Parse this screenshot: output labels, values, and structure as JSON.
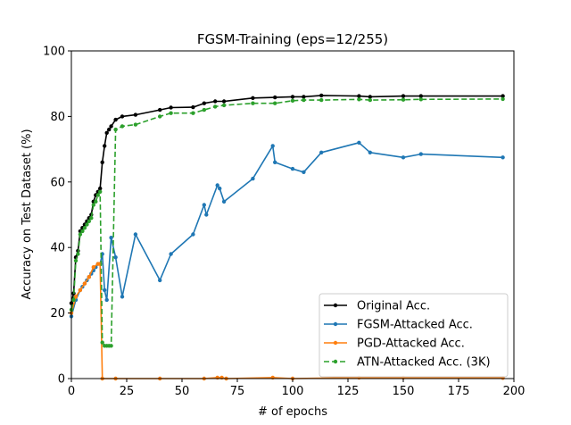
{
  "chart_data": {
    "type": "line",
    "title": "FGSM-Training (eps=12/255)",
    "xlabel": "# of epochs",
    "ylabel": "Accuracy on Test Dataset (%)",
    "xlim": [
      0,
      200
    ],
    "ylim": [
      0,
      100
    ],
    "xticks": [
      0,
      25,
      50,
      75,
      100,
      125,
      150,
      175,
      200
    ],
    "yticks": [
      0,
      20,
      40,
      60,
      80,
      100
    ],
    "grid": false,
    "legend_position": "lower-right",
    "series": [
      {
        "name": "Original Acc.",
        "color": "#000000",
        "style": "solid",
        "points": [
          [
            0,
            23
          ],
          [
            1,
            26
          ],
          [
            2,
            37
          ],
          [
            3,
            39
          ],
          [
            4,
            45
          ],
          [
            5,
            46
          ],
          [
            6,
            47
          ],
          [
            7,
            48
          ],
          [
            8,
            49
          ],
          [
            9,
            50
          ],
          [
            10,
            54
          ],
          [
            11,
            56
          ],
          [
            12,
            57
          ],
          [
            13,
            58
          ],
          [
            14,
            66
          ],
          [
            15,
            71
          ],
          [
            16,
            75
          ],
          [
            17,
            76
          ],
          [
            18,
            77
          ],
          [
            20,
            79
          ],
          [
            23,
            80
          ],
          [
            29,
            80.5
          ],
          [
            40,
            82
          ],
          [
            45,
            82.7
          ],
          [
            55,
            82.8
          ],
          [
            60,
            84
          ],
          [
            65,
            84.6
          ],
          [
            69,
            84.6
          ],
          [
            82,
            85.6
          ],
          [
            92,
            85.8
          ],
          [
            100,
            86
          ],
          [
            105,
            86
          ],
          [
            113,
            86.4
          ],
          [
            130,
            86.2
          ],
          [
            135,
            86
          ],
          [
            150,
            86.2
          ],
          [
            158,
            86.2
          ],
          [
            195,
            86.2
          ]
        ]
      },
      {
        "name": "FGSM-Attacked Acc.",
        "color": "#1f77b4",
        "style": "solid",
        "points": [
          [
            0,
            19
          ],
          [
            2,
            24
          ],
          [
            4,
            27
          ],
          [
            5,
            28
          ],
          [
            6,
            29
          ],
          [
            7,
            30
          ],
          [
            8,
            31
          ],
          [
            9,
            32
          ],
          [
            10,
            33
          ],
          [
            11,
            34
          ],
          [
            12,
            35
          ],
          [
            13,
            35
          ],
          [
            14,
            38
          ],
          [
            15,
            27
          ],
          [
            16,
            24
          ],
          [
            18,
            43
          ],
          [
            20,
            37
          ],
          [
            23,
            25
          ],
          [
            29,
            44
          ],
          [
            40,
            30
          ],
          [
            45,
            38
          ],
          [
            55,
            44
          ],
          [
            60,
            53
          ],
          [
            61,
            50
          ],
          [
            66,
            59
          ],
          [
            67,
            58
          ],
          [
            69,
            54
          ],
          [
            82,
            61
          ],
          [
            91,
            71
          ],
          [
            92,
            66
          ],
          [
            100,
            64
          ],
          [
            105,
            63
          ],
          [
            113,
            69
          ],
          [
            130,
            72
          ],
          [
            135,
            69
          ],
          [
            150,
            67.5
          ],
          [
            158,
            68.5
          ],
          [
            195,
            67.5
          ]
        ]
      },
      {
        "name": "PGD-Attacked Acc.",
        "color": "#ff7f0e",
        "style": "solid",
        "points": [
          [
            0,
            20
          ],
          [
            2,
            25
          ],
          [
            4,
            27
          ],
          [
            6,
            29
          ],
          [
            8,
            31
          ],
          [
            10,
            34
          ],
          [
            12,
            35
          ],
          [
            13,
            35
          ],
          [
            14,
            0
          ],
          [
            20,
            0
          ],
          [
            40,
            0
          ],
          [
            60,
            0
          ],
          [
            66,
            0.3
          ],
          [
            68,
            0.3
          ],
          [
            70,
            0
          ],
          [
            91,
            0.3
          ],
          [
            100,
            0
          ],
          [
            130,
            0.3
          ],
          [
            150,
            0.3
          ],
          [
            195,
            0.2
          ]
        ]
      },
      {
        "name": "ATN-Attacked Acc. (3K)",
        "color": "#2ca02c",
        "style": "dashed",
        "points": [
          [
            0,
            21
          ],
          [
            1,
            24
          ],
          [
            2,
            36
          ],
          [
            3,
            38
          ],
          [
            4,
            44
          ],
          [
            5,
            45
          ],
          [
            6,
            46
          ],
          [
            7,
            47
          ],
          [
            8,
            48
          ],
          [
            9,
            49
          ],
          [
            10,
            53
          ],
          [
            11,
            54
          ],
          [
            12,
            56
          ],
          [
            13,
            57
          ],
          [
            14,
            11
          ],
          [
            15,
            10
          ],
          [
            16,
            10
          ],
          [
            17,
            10
          ],
          [
            18,
            10
          ],
          [
            20,
            76
          ],
          [
            23,
            77
          ],
          [
            29,
            77.5
          ],
          [
            40,
            80
          ],
          [
            45,
            81
          ],
          [
            55,
            81
          ],
          [
            60,
            82
          ],
          [
            65,
            83
          ],
          [
            69,
            83.4
          ],
          [
            82,
            84
          ],
          [
            92,
            84
          ],
          [
            100,
            84.8
          ],
          [
            105,
            85
          ],
          [
            113,
            85
          ],
          [
            130,
            85.2
          ],
          [
            135,
            85
          ],
          [
            150,
            85.1
          ],
          [
            158,
            85.2
          ],
          [
            195,
            85.3
          ]
        ]
      }
    ]
  }
}
